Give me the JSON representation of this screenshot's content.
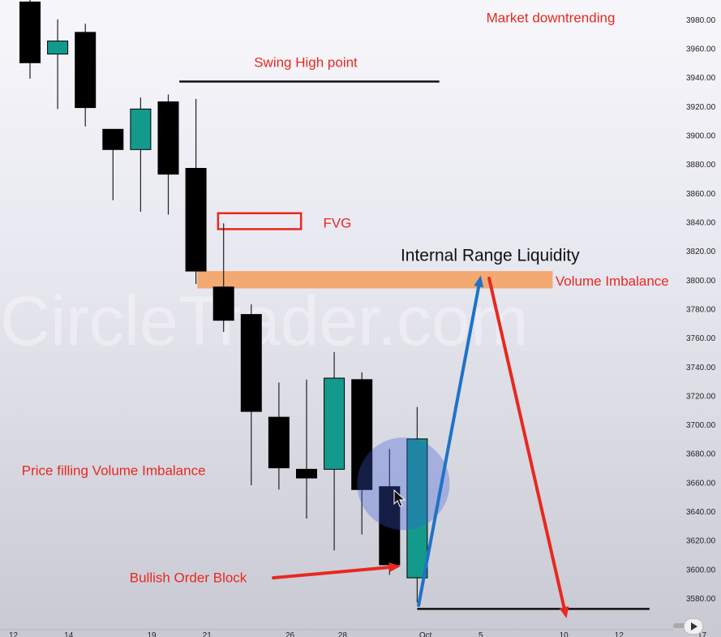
{
  "watermark": "CircleTrader.com",
  "chart_data": {
    "type": "candlestick",
    "ylim": [
      3570,
      3990
    ],
    "yticks": [
      "3980.00",
      "3960.00",
      "3940.00",
      "3920.00",
      "3900.00",
      "3880.00",
      "3860.00",
      "3840.00",
      "3820.00",
      "3800.00",
      "3780.00",
      "3760.00",
      "3740.00",
      "3720.00",
      "3700.00",
      "3680.00",
      "3660.00",
      "3640.00",
      "3620.00",
      "3600.00",
      "3580.00"
    ],
    "xticks": [
      {
        "label": "12",
        "bar": -0.6
      },
      {
        "label": "14",
        "bar": 1.4
      },
      {
        "label": "19",
        "bar": 4.4
      },
      {
        "label": "21",
        "bar": 6.4
      },
      {
        "label": "26",
        "bar": 9.4
      },
      {
        "label": "28",
        "bar": 11.3
      },
      {
        "label": "Oct",
        "bar": 14.3
      },
      {
        "label": "5",
        "bar": 16.3
      },
      {
        "label": "10",
        "bar": 19.3
      },
      {
        "label": "12",
        "bar": 21.3
      },
      {
        "label": "17",
        "bar": 24.3
      }
    ],
    "candles": [
      {
        "open": 3950,
        "close": 3992,
        "high": 3997,
        "low": 3939,
        "color": "black"
      },
      {
        "open": 3956,
        "close": 3965,
        "high": 3980,
        "low": 3918,
        "color": "teal"
      },
      {
        "open": 3971,
        "close": 3919,
        "high": 3977,
        "low": 3906,
        "color": "black"
      },
      {
        "open": 3904,
        "close": 3890,
        "high": 3904,
        "low": 3855,
        "color": "black"
      },
      {
        "open": 3890,
        "close": 3918,
        "high": 3926,
        "low": 3847,
        "color": "teal"
      },
      {
        "open": 3923,
        "close": 3873,
        "high": 3928,
        "low": 3845,
        "color": "black"
      },
      {
        "open": 3877,
        "close": 3806,
        "high": 3925,
        "low": 3797,
        "color": "black"
      },
      {
        "open": 3795,
        "close": 3772,
        "high": 3839,
        "low": 3764,
        "color": "black"
      },
      {
        "open": 3776,
        "close": 3709,
        "high": 3783,
        "low": 3658,
        "color": "black"
      },
      {
        "open": 3705,
        "close": 3670,
        "high": 3729,
        "low": 3655,
        "color": "black"
      },
      {
        "open": 3669,
        "close": 3663,
        "high": 3731,
        "low": 3635,
        "color": "black"
      },
      {
        "open": 3669,
        "close": 3732,
        "high": 3750,
        "low": 3613,
        "color": "teal"
      },
      {
        "open": 3731,
        "close": 3655,
        "high": 3736,
        "low": 3624,
        "color": "black"
      },
      {
        "open": 3657,
        "close": 3603,
        "high": 3683,
        "low": 3596,
        "color": "black"
      },
      {
        "open": 3594,
        "close": 3690,
        "high": 3712,
        "low": 3577,
        "color": "teal"
      }
    ],
    "zones": [
      {
        "name": "volume-imbalance",
        "label": "Volume Imbalance",
        "color": "#f3a56a",
        "from_bar": 6.05,
        "to_bar": 18.9,
        "top": 3806,
        "bottom": 3794
      },
      {
        "name": "fvg",
        "label": "FVG",
        "color": "#e8281e",
        "from_bar": 6.8,
        "to_bar": 9.8,
        "top": 3846,
        "bottom": 3835
      }
    ],
    "levels": [
      {
        "name": "swing-high-line",
        "price": 3937,
        "from_bar": 5.4,
        "to_bar": 14.8
      },
      {
        "name": "swing-low-line",
        "price": 3572.5,
        "from_bar": 14.0,
        "to_bar": 22.4
      }
    ],
    "arrows": [
      {
        "name": "blue-arrow",
        "color": "#1e73c8",
        "from": [
          14.05,
          3575
        ],
        "to": [
          16.3,
          3803
        ]
      },
      {
        "name": "red-arrow",
        "color": "#e8281e",
        "from": [
          16.6,
          3801
        ],
        "to": [
          19.4,
          3566
        ]
      },
      {
        "name": "order-block-pointer",
        "color": "#e8281e",
        "from": [
          8.8,
          3594
        ],
        "to": [
          13.4,
          3602
        ]
      }
    ],
    "highlight": {
      "name": "order-block-circle",
      "bar": 13.5,
      "price": 3659,
      "radius_price": 32
    },
    "annotations": [
      {
        "key": "market_down",
        "text": "Market downtrending",
        "bar": 16.5,
        "price": 3978
      },
      {
        "key": "swing_high",
        "text": "Swing High point",
        "bar": 8.1,
        "price": 3947
      },
      {
        "key": "fvg",
        "text": "FVG",
        "bar": 10.6,
        "price": 3836
      },
      {
        "key": "irl",
        "text": "Internal Range Liquidity",
        "bar": 13.4,
        "price": 3813
      },
      {
        "key": "vol_imb",
        "text": "Volume Imbalance",
        "bar": 19.0,
        "price": 3796
      },
      {
        "key": "price_fill",
        "text": "Price filling Volume Imbalance",
        "bar": -0.3,
        "price": 3665
      },
      {
        "key": "bullish_ob",
        "text": "Bullish Order Block",
        "bar": 3.6,
        "price": 3591
      }
    ]
  }
}
